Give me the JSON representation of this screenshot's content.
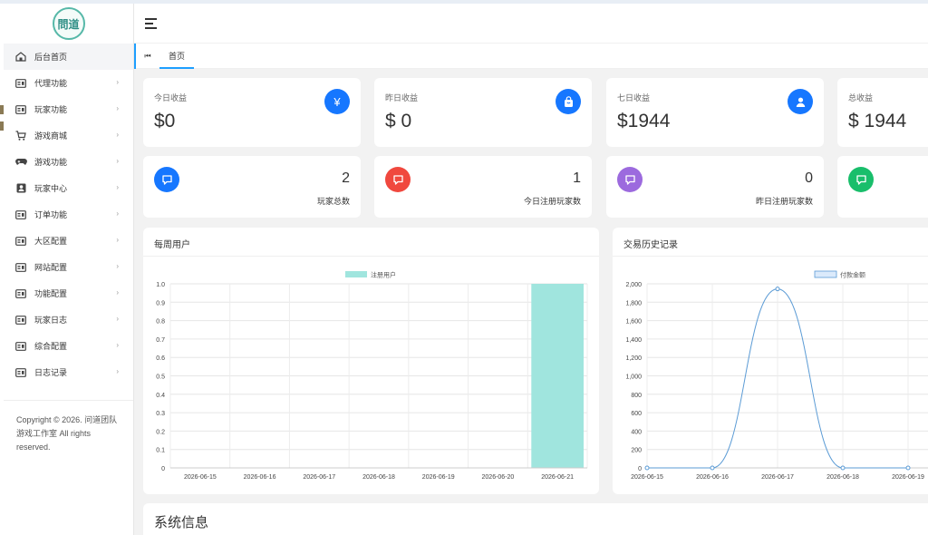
{
  "logo": {
    "text": "問道"
  },
  "sidebar": {
    "items": [
      {
        "label": "后台首页",
        "icon": "home-icon",
        "active": true,
        "has_children": false
      },
      {
        "label": "代理功能",
        "icon": "card-icon",
        "has_children": true
      },
      {
        "label": "玩家功能",
        "icon": "card-icon",
        "has_children": true
      },
      {
        "label": "游戏商城",
        "icon": "cart-icon",
        "has_children": true
      },
      {
        "label": "游戏功能",
        "icon": "gamepad-icon",
        "has_children": true
      },
      {
        "label": "玩家中心",
        "icon": "user-card-icon",
        "has_children": true
      },
      {
        "label": "订单功能",
        "icon": "card-icon",
        "has_children": true
      },
      {
        "label": "大区配置",
        "icon": "card-icon",
        "has_children": true
      },
      {
        "label": "网站配置",
        "icon": "card-icon",
        "has_children": true
      },
      {
        "label": "功能配置",
        "icon": "card-icon",
        "has_children": true
      },
      {
        "label": "玩家日志",
        "icon": "card-icon",
        "has_children": true
      },
      {
        "label": "综合配置",
        "icon": "card-icon",
        "has_children": true
      },
      {
        "label": "日志记录",
        "icon": "card-icon",
        "has_children": true
      }
    ],
    "copyright": "Copyright © 2026. 问道团队游戏工作室 All rights reserved."
  },
  "tabs": {
    "prev": "⏮",
    "home": "首页"
  },
  "stats": [
    {
      "label": "今日收益",
      "value": "$0",
      "icon": "yen-icon",
      "glyph": "¥"
    },
    {
      "label": "昨日收益",
      "value": "$ 0",
      "icon": "bag-icon",
      "glyph": ""
    },
    {
      "label": "七日收益",
      "value": "$1944",
      "icon": "user-icon",
      "glyph": ""
    },
    {
      "label": "总收益",
      "value": "$ 1944",
      "icon": "user-icon",
      "glyph": ""
    }
  ],
  "counts": [
    {
      "number": "2",
      "label": "玩家总数",
      "color": "#1677ff"
    },
    {
      "number": "1",
      "label": "今日注册玩家数",
      "color": "#f0483e"
    },
    {
      "number": "0",
      "label": "昨日注册玩家数",
      "color": "#9c6ade"
    },
    {
      "number": "",
      "label": "",
      "color": "#19be6b"
    }
  ],
  "weekly_chart_title": "每周用户",
  "trade_chart_title": "交易历史记录",
  "system_info_title": "系统信息",
  "chart_data": [
    {
      "type": "bar",
      "title": "每周用户",
      "categories": [
        "2026-06-15",
        "2026-06-16",
        "2026-06-17",
        "2026-06-18",
        "2026-06-19",
        "2026-06-20",
        "2026-06-21"
      ],
      "series": [
        {
          "name": "注册用户",
          "values": [
            0,
            0,
            0,
            0,
            0,
            0,
            1
          ]
        }
      ],
      "ylim": [
        0,
        1.0
      ],
      "yticks": [
        "0",
        "0.1",
        "0.2",
        "0.3",
        "0.4",
        "0.5",
        "0.6",
        "0.7",
        "0.8",
        "0.9",
        "1.0"
      ],
      "color": "#a0e5de",
      "grid": true,
      "legend": "top-center"
    },
    {
      "type": "line",
      "title": "交易历史记录",
      "categories": [
        "2026-06-15",
        "2026-06-16",
        "2026-06-17",
        "2026-06-18",
        "2026-06-19"
      ],
      "series": [
        {
          "name": "付款金额",
          "values": [
            0,
            0,
            1944,
            0,
            0
          ]
        }
      ],
      "ylim": [
        0,
        2000
      ],
      "yticks": [
        "0",
        "200",
        "400",
        "600",
        "800",
        "1,000",
        "1,200",
        "1,400",
        "1,600",
        "1,800",
        "2,000"
      ],
      "color": "#5b9bd5",
      "grid": true,
      "legend": "top-center"
    }
  ]
}
